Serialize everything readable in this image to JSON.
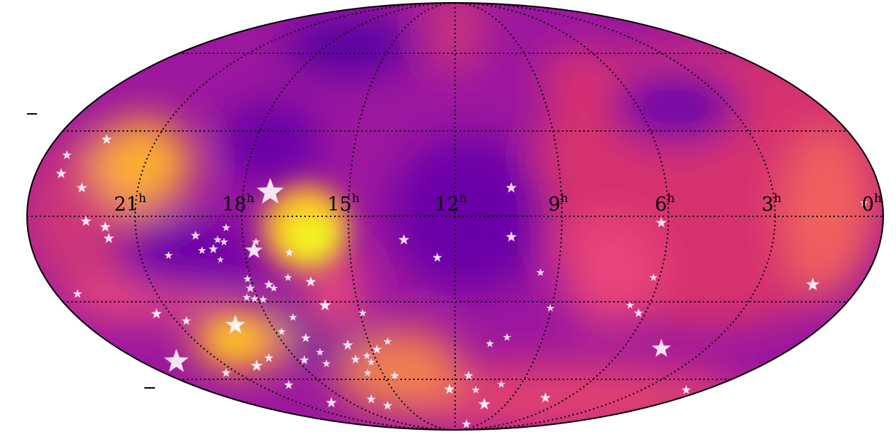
{
  "hour_labels": [
    {
      "hour": "21",
      "unit": "h"
    },
    {
      "hour": "18",
      "unit": "h"
    },
    {
      "hour": "15",
      "unit": "h"
    },
    {
      "hour": "12",
      "unit": "h"
    },
    {
      "hour": "9",
      "unit": "h"
    },
    {
      "hour": "6",
      "unit": "h"
    },
    {
      "hour": "3",
      "unit": "h"
    },
    {
      "hour": "0",
      "unit": "h"
    }
  ]
}
